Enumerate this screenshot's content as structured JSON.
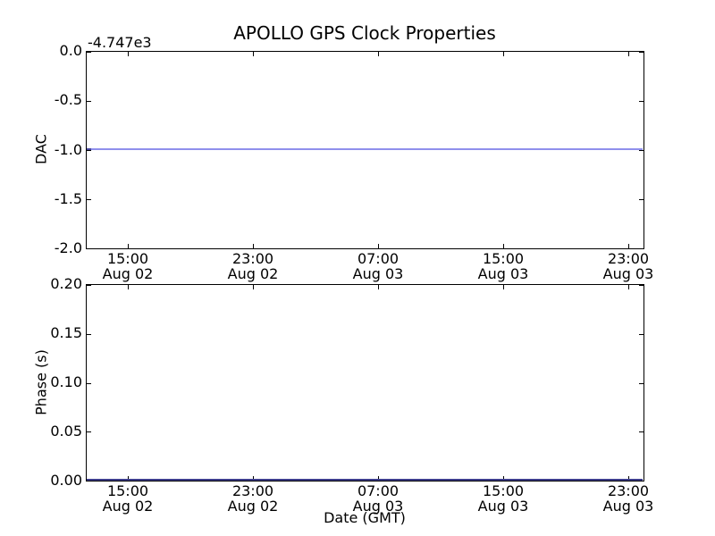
{
  "figure": {
    "title": "APOLLO GPS Clock Properties",
    "background_color": "#ffffff",
    "spine_color": "#000000"
  },
  "chart_data": [
    {
      "type": "line",
      "title": "APOLLO GPS Clock Properties",
      "ylabel": "DAC",
      "xlabel": "",
      "y_offset_text": "-4.747e3",
      "ylim": [
        -2.0,
        0.0
      ],
      "yticks": [
        "0.0",
        "-0.5",
        "-1.0",
        "-1.5",
        "-2.0"
      ],
      "grid": false,
      "legend": "none",
      "xticks": [
        {
          "time": "15:00",
          "date": "Aug 02"
        },
        {
          "time": "23:00",
          "date": "Aug 02"
        },
        {
          "time": "07:00",
          "date": "Aug 03"
        },
        {
          "time": "15:00",
          "date": "Aug 03"
        },
        {
          "time": "23:00",
          "date": "Aug 03"
        }
      ],
      "series": [
        {
          "name": "DAC",
          "color": "#8f8fec",
          "shape": "constant horizontal line spanning full x-range",
          "y_value": -1.0
        }
      ]
    },
    {
      "type": "line",
      "title": "",
      "ylabel": "Phase (s)",
      "xlabel": "Date (GMT)",
      "ylim": [
        0.0,
        0.2
      ],
      "yticks": [
        "0.20",
        "0.15",
        "0.10",
        "0.05",
        "0.00"
      ],
      "grid": false,
      "legend": "none",
      "xticks": [
        {
          "time": "15:00",
          "date": "Aug 02"
        },
        {
          "time": "23:00",
          "date": "Aug 02"
        },
        {
          "time": "07:00",
          "date": "Aug 03"
        },
        {
          "time": "15:00",
          "date": "Aug 03"
        },
        {
          "time": "23:00",
          "date": "Aug 03"
        }
      ],
      "series": [
        {
          "name": "Phase",
          "color": "#3c3c8c",
          "shape": "constant horizontal line along the bottom spine spanning full x-range",
          "y_value": 0.0
        }
      ]
    }
  ]
}
